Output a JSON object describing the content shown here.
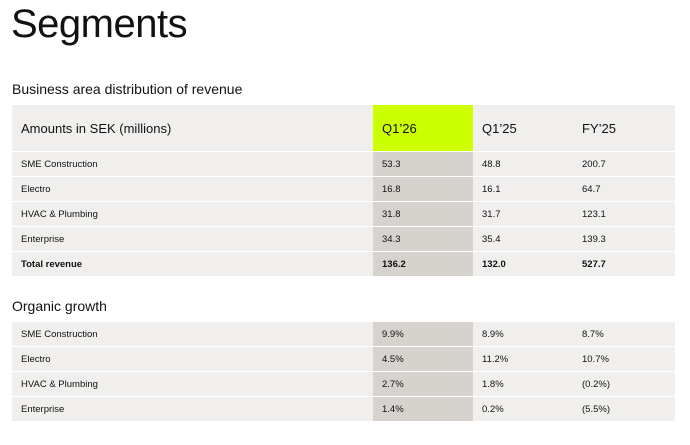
{
  "header": {
    "title": "Segments"
  },
  "revenue": {
    "heading": "Business area distribution of revenue",
    "columns": [
      "Amounts in SEK (millions)",
      "Q1’26",
      "Q1’25",
      "FY’25"
    ],
    "rows": [
      [
        "SME Construction",
        "53.3",
        "48.8",
        "200.7"
      ],
      [
        "Electro",
        "16.8",
        "16.1",
        "64.7"
      ],
      [
        "HVAC & Plumbing",
        "31.8",
        "31.7",
        "123.1"
      ],
      [
        "Enterprise",
        "34.3",
        "35.4",
        "139.3"
      ],
      [
        "Total revenue",
        "136.2",
        "132.0",
        "527.7"
      ]
    ]
  },
  "growth": {
    "heading": "Organic growth",
    "rows": [
      [
        "SME Construction",
        "9.9%",
        "8.9%",
        "8.7%"
      ],
      [
        "Electro",
        "4.5%",
        "11.2%",
        "10.7%"
      ],
      [
        "HVAC & Plumbing",
        "2.7%",
        "1.8%",
        "(0.2%)"
      ],
      [
        "Enterprise",
        "1.4%",
        "0.2%",
        "(5.5%)"
      ]
    ]
  }
}
